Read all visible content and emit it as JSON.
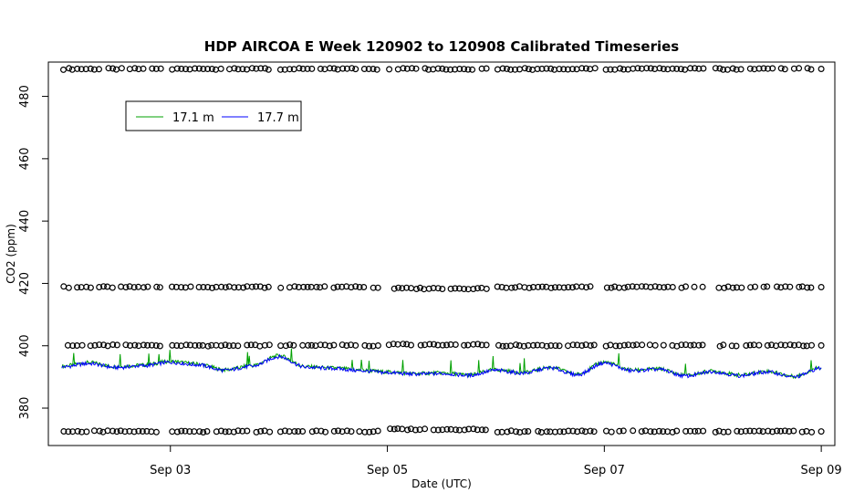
{
  "chart_data": {
    "type": "line",
    "title": "HDP AIRCOA E  Week 120902 to 120908  Calibrated Timeseries",
    "xlabel": "Date (UTC)",
    "ylabel": "CO2 (ppm)",
    "x_range_days": [
      "2012-09-02",
      "2012-09-09"
    ],
    "xlim": [
      "2012-09-01 21:00",
      "2012-09-09 03:00"
    ],
    "ylim": [
      368,
      491
    ],
    "x_ticks": [
      {
        "label": "Sep 03",
        "date": "2012-09-03"
      },
      {
        "label": "Sep 05",
        "date": "2012-09-05"
      },
      {
        "label": "Sep 07",
        "date": "2012-09-07"
      },
      {
        "label": "Sep 09",
        "date": "2012-09-09"
      }
    ],
    "y_ticks": [
      380,
      400,
      420,
      440,
      460,
      480
    ],
    "grid": false,
    "legend": {
      "position": "top-left",
      "entries": [
        "17.1 m",
        "17.7 m"
      ]
    },
    "series": [
      {
        "name": "17.1 m",
        "color": "#00a000",
        "points": [
          [
            "2012-09-02 00:00",
            393.5
          ],
          [
            "2012-09-02 06:00",
            394.6
          ],
          [
            "2012-09-02 12:00",
            393.3
          ],
          [
            "2012-09-02 18:00",
            393.8
          ],
          [
            "2012-09-03 00:00",
            395.0
          ],
          [
            "2012-09-03 06:00",
            394.2
          ],
          [
            "2012-09-03 12:00",
            392.3
          ],
          [
            "2012-09-03 18:00",
            393.6
          ],
          [
            "2012-09-04 00:00",
            396.8
          ],
          [
            "2012-09-04 06:00",
            393.3
          ],
          [
            "2012-09-04 12:00",
            392.9
          ],
          [
            "2012-09-04 18:00",
            392.2
          ],
          [
            "2012-09-05 00:00",
            391.6
          ],
          [
            "2012-09-05 06:00",
            391.1
          ],
          [
            "2012-09-05 12:00",
            391.3
          ],
          [
            "2012-09-05 18:00",
            390.7
          ],
          [
            "2012-09-06 00:00",
            392.3
          ],
          [
            "2012-09-06 06:00",
            391.4
          ],
          [
            "2012-09-06 12:00",
            393.1
          ],
          [
            "2012-09-06 18:00",
            390.9
          ],
          [
            "2012-09-07 00:00",
            394.8
          ],
          [
            "2012-09-07 06:00",
            392.2
          ],
          [
            "2012-09-07 12:00",
            392.6
          ],
          [
            "2012-09-07 18:00",
            390.5
          ],
          [
            "2012-09-08 00:00",
            391.9
          ],
          [
            "2012-09-08 06:00",
            390.6
          ],
          [
            "2012-09-08 12:00",
            391.8
          ],
          [
            "2012-09-08 18:00",
            390.2
          ],
          [
            "2012-09-09 00:00",
            393.1
          ]
        ]
      },
      {
        "name": "17.7 m",
        "color": "#0000ff",
        "points": [
          [
            "2012-09-02 00:00",
            393.2
          ],
          [
            "2012-09-02 06:00",
            394.3
          ],
          [
            "2012-09-02 12:00",
            393.0
          ],
          [
            "2012-09-02 18:00",
            393.6
          ],
          [
            "2012-09-03 00:00",
            394.7
          ],
          [
            "2012-09-03 06:00",
            393.9
          ],
          [
            "2012-09-03 12:00",
            392.1
          ],
          [
            "2012-09-03 18:00",
            393.4
          ],
          [
            "2012-09-04 00:00",
            396.5
          ],
          [
            "2012-09-04 06:00",
            393.1
          ],
          [
            "2012-09-04 12:00",
            392.7
          ],
          [
            "2012-09-04 18:00",
            392.0
          ],
          [
            "2012-09-05 00:00",
            391.4
          ],
          [
            "2012-09-05 06:00",
            390.9
          ],
          [
            "2012-09-05 12:00",
            391.1
          ],
          [
            "2012-09-05 18:00",
            390.5
          ],
          [
            "2012-09-06 00:00",
            392.1
          ],
          [
            "2012-09-06 06:00",
            391.2
          ],
          [
            "2012-09-06 12:00",
            392.9
          ],
          [
            "2012-09-06 18:00",
            390.7
          ],
          [
            "2012-09-07 00:00",
            394.5
          ],
          [
            "2012-09-07 06:00",
            392.0
          ],
          [
            "2012-09-07 12:00",
            392.4
          ],
          [
            "2012-09-07 18:00",
            390.3
          ],
          [
            "2012-09-08 00:00",
            391.7
          ],
          [
            "2012-09-08 06:00",
            390.4
          ],
          [
            "2012-09-08 12:00",
            391.6
          ],
          [
            "2012-09-08 18:00",
            390.0
          ],
          [
            "2012-09-09 00:00",
            392.8
          ]
        ]
      },
      {
        "name": "",
        "marker": "circle",
        "color": "#000000",
        "points": [
          [
            "2012-09-02 00:00",
            488.8
          ],
          [
            "2012-09-02 00:00",
            418.8
          ],
          [
            "2012-09-02 00:00",
            400.1
          ],
          [
            "2012-09-02 00:00",
            372.5
          ],
          [
            "2012-09-03 00:00",
            488.8
          ],
          [
            "2012-09-03 00:00",
            418.8
          ],
          [
            "2012-09-03 00:00",
            400.1
          ],
          [
            "2012-09-03 00:00",
            372.5
          ],
          [
            "2012-09-04 00:00",
            488.8
          ],
          [
            "2012-09-04 00:00",
            418.8
          ],
          [
            "2012-09-04 00:00",
            400.1
          ],
          [
            "2012-09-04 00:00",
            372.5
          ],
          [
            "2012-09-05 00:00",
            488.8
          ],
          [
            "2012-09-05 00:00",
            418.4
          ],
          [
            "2012-09-05 00:00",
            400.4
          ],
          [
            "2012-09-05 00:00",
            373.2
          ],
          [
            "2012-09-06 00:00",
            488.8
          ],
          [
            "2012-09-06 00:00",
            418.8
          ],
          [
            "2012-09-06 00:00",
            400.1
          ],
          [
            "2012-09-06 00:00",
            372.5
          ],
          [
            "2012-09-07 00:00",
            488.8
          ],
          [
            "2012-09-07 00:00",
            418.8
          ],
          [
            "2012-09-07 00:00",
            400.1
          ],
          [
            "2012-09-07 00:00",
            372.5
          ],
          [
            "2012-09-08 00:00",
            488.8
          ],
          [
            "2012-09-08 00:00",
            418.8
          ],
          [
            "2012-09-08 00:00",
            400.1
          ],
          [
            "2012-09-08 00:00",
            372.5
          ],
          [
            "2012-09-09 00:00",
            488.8
          ],
          [
            "2012-09-09 00:00",
            418.8
          ],
          [
            "2012-09-09 00:00",
            400.1
          ],
          [
            "2012-09-09 00:00",
            372.5
          ]
        ]
      }
    ]
  }
}
